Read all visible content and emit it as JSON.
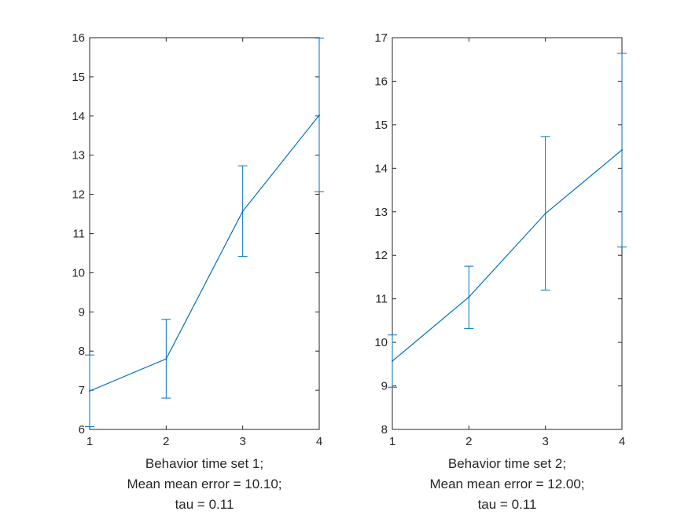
{
  "colors": {
    "series": "#0072BD",
    "axes": "#262626",
    "background": "#ffffff"
  },
  "chart_data": [
    {
      "type": "line",
      "error_bars": true,
      "grid": false,
      "x": [
        1,
        2,
        3,
        4
      ],
      "values": [
        6.98,
        7.8,
        11.57,
        14.02
      ],
      "err_lower": [
        6.07,
        6.8,
        10.42,
        12.07
      ],
      "err_upper": [
        7.9,
        8.81,
        12.73,
        15.99
      ],
      "xlim": [
        1,
        4
      ],
      "ylim": [
        6,
        16
      ],
      "xticks": [
        "1",
        "2",
        "3",
        "4"
      ],
      "yticks": [
        "6",
        "7",
        "8",
        "9",
        "10",
        "11",
        "12",
        "13",
        "14",
        "15",
        "16"
      ],
      "xlabel": [
        "Behavior time set 1;",
        "Mean mean error = 10.10;",
        "tau = 0.11"
      ],
      "ylabel": "",
      "title": ""
    },
    {
      "type": "line",
      "error_bars": true,
      "grid": false,
      "x": [
        1,
        2,
        3,
        4
      ],
      "values": [
        9.57,
        11.04,
        12.96,
        14.42
      ],
      "err_lower": [
        8.97,
        10.32,
        11.2,
        12.19
      ],
      "err_upper": [
        10.17,
        11.75,
        14.73,
        16.64
      ],
      "xlim": [
        1,
        4
      ],
      "ylim": [
        8,
        17
      ],
      "xticks": [
        "1",
        "2",
        "3",
        "4"
      ],
      "yticks": [
        "8",
        "9",
        "10",
        "11",
        "12",
        "13",
        "14",
        "15",
        "16",
        "17"
      ],
      "xlabel": [
        "Behavior time set 2;",
        "Mean mean error = 12.00;",
        "tau = 0.11"
      ],
      "ylabel": "",
      "title": ""
    }
  ]
}
